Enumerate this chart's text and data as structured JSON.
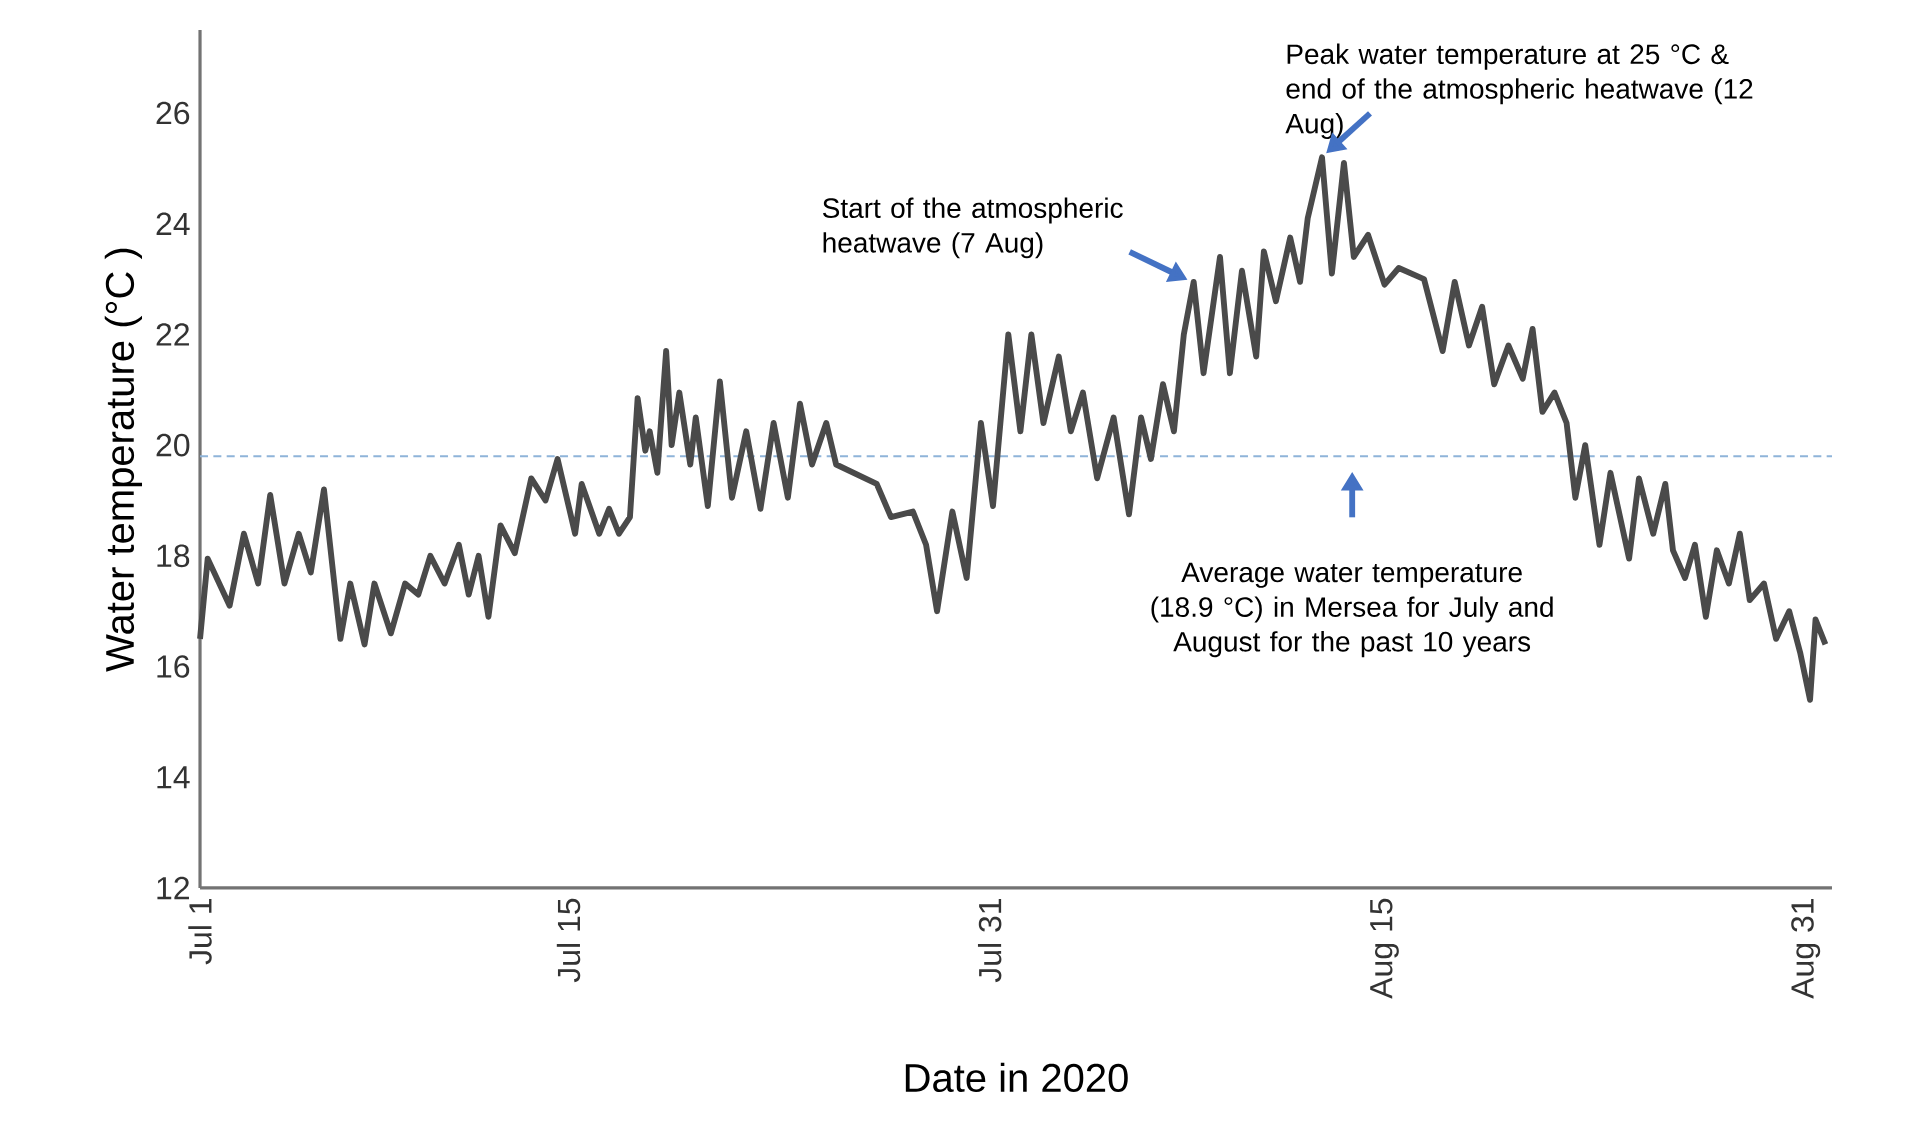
{
  "chart_data": {
    "type": "line",
    "xlabel": "Date in 2020",
    "ylabel": "Water temperature (°C )",
    "color": "#4a4a4a",
    "x": [
      "2020-07-01T00:00",
      "2020-07-01T07:00",
      "2020-07-02T03:00",
      "2020-07-02T16:00",
      "2020-07-03T05:00",
      "2020-07-03T16:00",
      "2020-07-04T05:00",
      "2020-07-04T18:00",
      "2020-07-05T05:00",
      "2020-07-05T17:00",
      "2020-07-06T08:00",
      "2020-07-06T17:00",
      "2020-07-07T06:00",
      "2020-07-07T15:00",
      "2020-07-08T06:00",
      "2020-07-08T19:00",
      "2020-07-09T07:00",
      "2020-07-09T18:00",
      "2020-07-10T07:00",
      "2020-07-10T20:00",
      "2020-07-11T05:00",
      "2020-07-11T14:00",
      "2020-07-11T23:00",
      "2020-07-12T10:00",
      "2020-07-12T23:00",
      "2020-07-13T14:00",
      "2020-07-14T03:00",
      "2020-07-14T14:00",
      "2020-07-15T06:00",
      "2020-07-15T12:00",
      "2020-07-16T04:00",
      "2020-07-16T13:00",
      "2020-07-16T22:00",
      "2020-07-17T08:00",
      "2020-07-17T15:00",
      "2020-07-17T22:00",
      "2020-07-18T02:00",
      "2020-07-18T09:00",
      "2020-07-18T17:00",
      "2020-07-18T22:00",
      "2020-07-19T05:00",
      "2020-07-19T15:00",
      "2020-07-19T20:00",
      "2020-07-20T07:00",
      "2020-07-20T18:00",
      "2020-07-21T05:00",
      "2020-07-21T18:00",
      "2020-07-22T07:00",
      "2020-07-22T19:00",
      "2020-07-23T08:00",
      "2020-07-23T19:00",
      "2020-07-24T06:00",
      "2020-07-24T19:00",
      "2020-07-25T04:00",
      "2020-07-26T17:00",
      "2020-07-27T06:00",
      "2020-07-28T02:00",
      "2020-07-28T14:00",
      "2020-07-29T00:00",
      "2020-07-29T14:00",
      "2020-07-30T03:00",
      "2020-07-30T16:00",
      "2020-07-31T03:00",
      "2020-07-31T17:00",
      "2020-08-01T04:00",
      "2020-08-01T14:00",
      "2020-08-02T01:00",
      "2020-08-02T15:00",
      "2020-08-03T02:00",
      "2020-08-03T13:00",
      "2020-08-04T02:00",
      "2020-08-04T17:00",
      "2020-08-05T07:00",
      "2020-08-05T18:00",
      "2020-08-06T03:00",
      "2020-08-06T14:00",
      "2020-08-07T00:00",
      "2020-08-07T09:00",
      "2020-08-07T18:00",
      "2020-08-08T03:00",
      "2020-08-08T18:00",
      "2020-08-09T03:00",
      "2020-08-09T14:00",
      "2020-08-10T03:00",
      "2020-08-10T10:00",
      "2020-08-10T21:00",
      "2020-08-11T10:00",
      "2020-08-11T19:00",
      "2020-08-12T02:00",
      "2020-08-12T15:00",
      "2020-08-13T00:00",
      "2020-08-13T11:00",
      "2020-08-13T20:00",
      "2020-08-14T09:00",
      "2020-08-15T00:00",
      "2020-08-15T13:00",
      "2020-08-16T12:00",
      "2020-08-17T05:00",
      "2020-08-17T16:00",
      "2020-08-18T05:00",
      "2020-08-18T17:00",
      "2020-08-19T04:00",
      "2020-08-19T17:00",
      "2020-08-20T06:00",
      "2020-08-20T15:00",
      "2020-08-21T00:00",
      "2020-08-21T11:00",
      "2020-08-21T22:00",
      "2020-08-22T06:00",
      "2020-08-22T15:00",
      "2020-08-23T04:00",
      "2020-08-23T14:00",
      "2020-08-24T07:00",
      "2020-08-24T16:00",
      "2020-08-25T05:00",
      "2020-08-25T16:00",
      "2020-08-25T23:00",
      "2020-08-26T10:00",
      "2020-08-26T19:00",
      "2020-08-27T05:00",
      "2020-08-27T15:00",
      "2020-08-28T02:00",
      "2020-08-28T12:00",
      "2020-08-28T21:00",
      "2020-08-29T10:00",
      "2020-08-29T21:00",
      "2020-08-30T09:00",
      "2020-08-30T19:00",
      "2020-08-31T04:00",
      "2020-08-31T09:00",
      "2020-08-31T18:00"
    ],
    "values": [
      16.5,
      17.95,
      17.1,
      18.4,
      17.5,
      19.1,
      17.5,
      18.4,
      17.7,
      19.2,
      16.5,
      17.5,
      16.4,
      17.5,
      16.6,
      17.5,
      17.3,
      18.0,
      17.5,
      18.2,
      17.3,
      18.0,
      16.9,
      18.55,
      18.05,
      19.4,
      19.0,
      19.75,
      18.4,
      19.3,
      18.4,
      18.85,
      18.4,
      18.7,
      20.85,
      19.9,
      20.25,
      19.5,
      21.7,
      20.0,
      20.95,
      19.65,
      20.5,
      18.9,
      21.15,
      19.05,
      20.25,
      18.85,
      20.4,
      19.05,
      20.75,
      19.65,
      20.4,
      19.65,
      19.3,
      18.7,
      18.8,
      18.2,
      17.0,
      18.8,
      17.6,
      20.4,
      18.9,
      22.0,
      20.25,
      22.0,
      20.4,
      21.6,
      20.25,
      20.95,
      19.4,
      20.5,
      18.75,
      20.5,
      19.75,
      21.1,
      20.25,
      22.0,
      22.95,
      21.3,
      23.4,
      21.3,
      23.15,
      21.6,
      23.5,
      22.6,
      23.75,
      22.95,
      24.1,
      25.2,
      23.1,
      25.1,
      23.4,
      23.8,
      22.9,
      23.2,
      23.0,
      21.7,
      22.95,
      21.8,
      22.5,
      21.1,
      21.8,
      21.2,
      22.1,
      20.6,
      20.95,
      20.4,
      19.05,
      20.0,
      18.2,
      19.5,
      17.95,
      19.4,
      18.4,
      19.3,
      18.1,
      17.6,
      18.2,
      16.9,
      18.1,
      17.5,
      18.4,
      17.2,
      17.5,
      16.5,
      17.0,
      16.25,
      15.4,
      16.85,
      16.4
    ],
    "xlim": [
      "2020-07-01",
      "2020-09-01"
    ],
    "xticks": [
      {
        "value": "2020-07-01",
        "label": "Jul 1"
      },
      {
        "value": "2020-07-15",
        "label": "Jul 15"
      },
      {
        "value": "2020-07-31",
        "label": "Jul 31"
      },
      {
        "value": "2020-08-15",
        "label": "Aug 15"
      },
      {
        "value": "2020-08-31",
        "label": "Aug 31"
      }
    ],
    "ylim": [
      12,
      27.5
    ],
    "yticks": [
      12,
      14,
      16,
      18,
      20,
      22,
      24,
      26
    ],
    "ref_lines": [
      {
        "axis": "y",
        "value": 19.8,
        "color": "#8fb4d9",
        "line_style": "dashed"
      }
    ],
    "annotations": [
      {
        "text": "Start of the atmospheric heatwave (7 Aug)",
        "x": "2020-08-07T18:00",
        "y": 22.95
      },
      {
        "text": "Peak water temperature at 25 °C & end of the atmospheric heatwave (12 Aug)",
        "x": "2020-08-12T15:00",
        "y": 25.2
      },
      "Average water temperature (18.9 °C) in Mersea for July and August for the past 10 years"
    ]
  }
}
